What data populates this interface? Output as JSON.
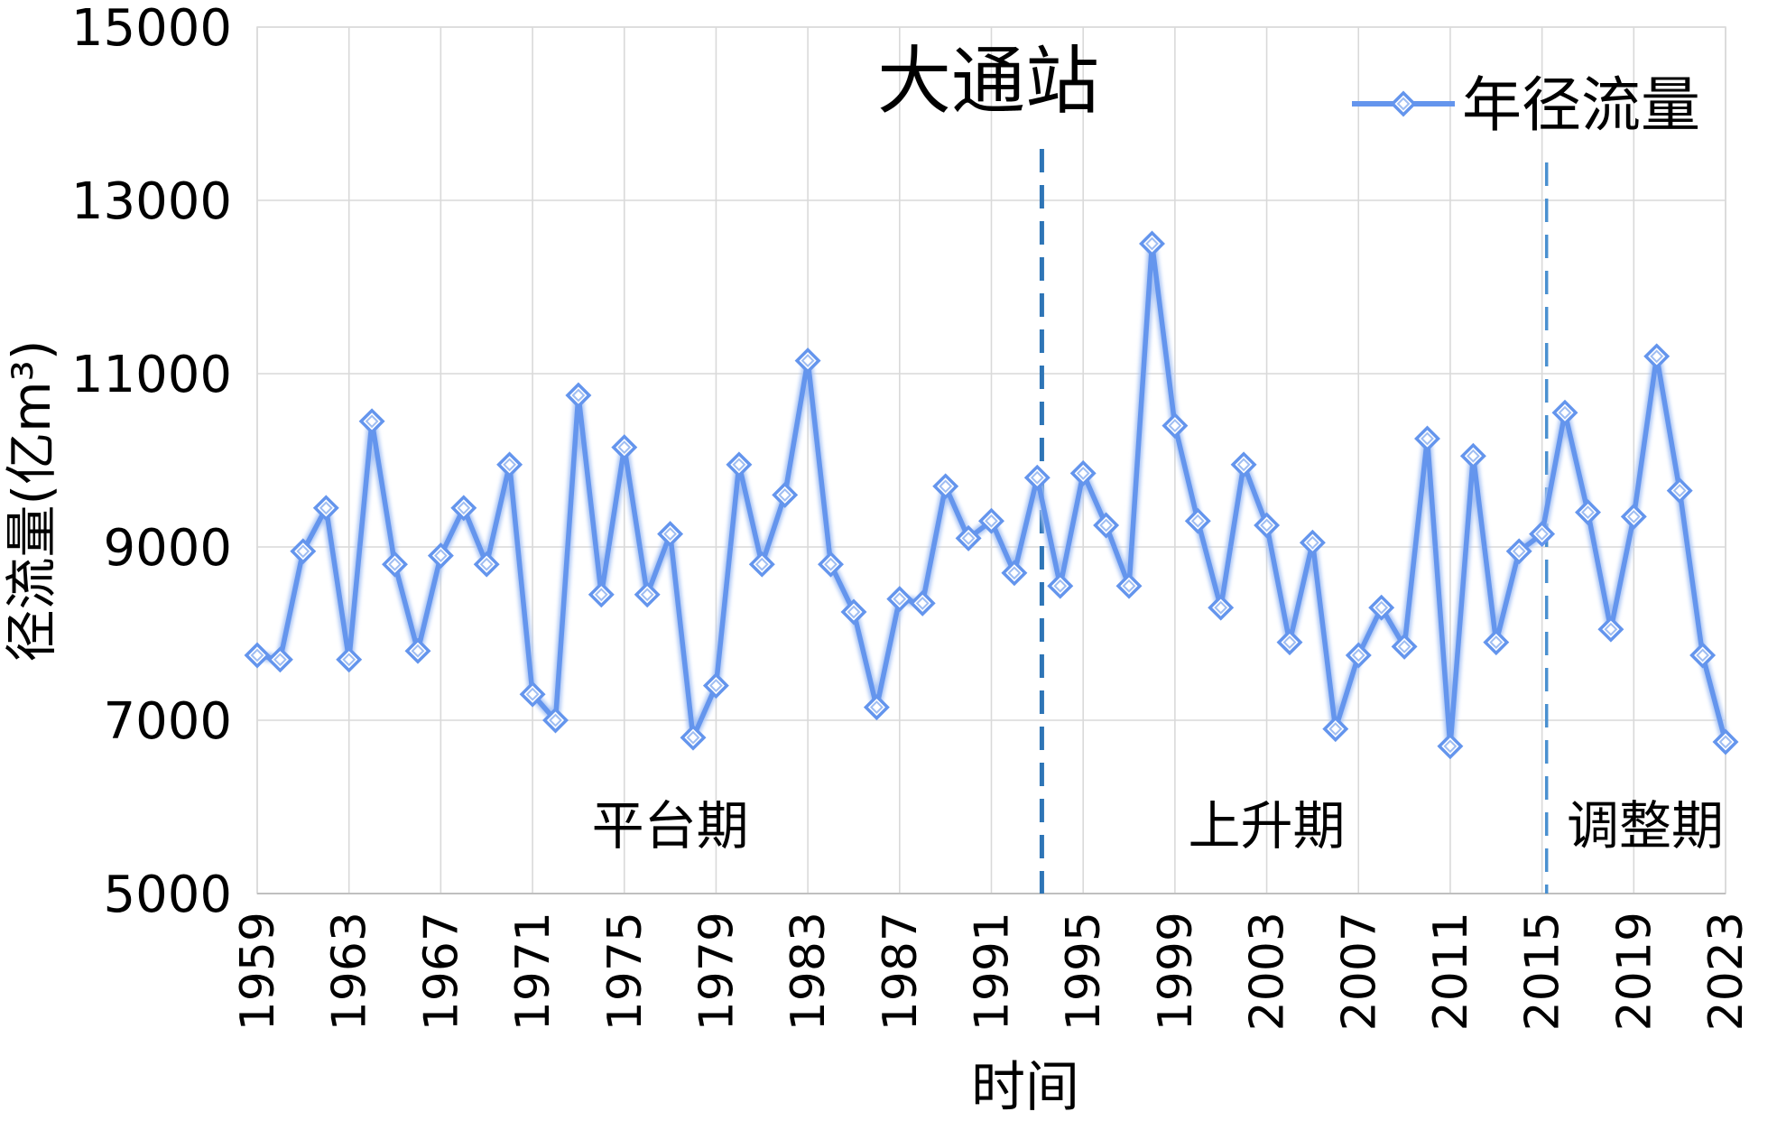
{
  "chart_data": {
    "type": "line",
    "title": "大通站",
    "xlabel": "时间",
    "ylabel": "径流量(亿m³)",
    "ylim": [
      5000,
      15000
    ],
    "yticks": [
      5000,
      7000,
      9000,
      11000,
      13000,
      15000
    ],
    "xlim": [
      1959,
      2023
    ],
    "xticks": [
      1959,
      1963,
      1967,
      1971,
      1975,
      1979,
      1983,
      1987,
      1991,
      1995,
      1999,
      2003,
      2007,
      2011,
      2015,
      2019,
      2023
    ],
    "grid": true,
    "legend": {
      "position": "top-right",
      "entries": [
        "年径流量"
      ]
    },
    "series": [
      {
        "name": "年径流量",
        "color": "#6495ED",
        "x": [
          1959,
          1960,
          1961,
          1962,
          1963,
          1964,
          1965,
          1966,
          1967,
          1968,
          1969,
          1970,
          1971,
          1972,
          1973,
          1974,
          1975,
          1976,
          1977,
          1978,
          1979,
          1980,
          1981,
          1982,
          1983,
          1984,
          1985,
          1986,
          1987,
          1988,
          1989,
          1990,
          1991,
          1992,
          1993,
          1994,
          1995,
          1996,
          1997,
          1998,
          1999,
          2000,
          2001,
          2002,
          2003,
          2004,
          2005,
          2006,
          2007,
          2008,
          2009,
          2010,
          2011,
          2012,
          2013,
          2014,
          2015,
          2016,
          2017,
          2018,
          2019,
          2020,
          2021,
          2022,
          2023
        ],
        "values": [
          7750,
          7700,
          8950,
          9450,
          7700,
          10450,
          8800,
          7800,
          8900,
          9450,
          8800,
          9950,
          7300,
          7000,
          10750,
          8450,
          10150,
          8450,
          9150,
          6800,
          7400,
          9950,
          8800,
          9600,
          11150,
          8800,
          8250,
          7150,
          8400,
          8350,
          9700,
          9100,
          9300,
          8700,
          9800,
          8550,
          9850,
          9250,
          8550,
          12500,
          10400,
          9300,
          8300,
          9950,
          9250,
          7900,
          9050,
          6900,
          7750,
          8300,
          7850,
          10250,
          6700,
          10050,
          7900,
          8950,
          9150,
          10550,
          9400,
          8050,
          9350,
          11200,
          9650,
          7750,
          6750
        ]
      }
    ],
    "vertical_markers": [
      {
        "x": 1993.2,
        "style": "dashed"
      },
      {
        "x": 2015.2,
        "style": "dashed"
      }
    ],
    "annotations": [
      {
        "text": "平台期",
        "x": 1977,
        "y": 5800
      },
      {
        "text": "上升期",
        "x": 2003,
        "y": 5800
      },
      {
        "text": "调整期",
        "x": 2019.5,
        "y": 5800
      }
    ]
  }
}
